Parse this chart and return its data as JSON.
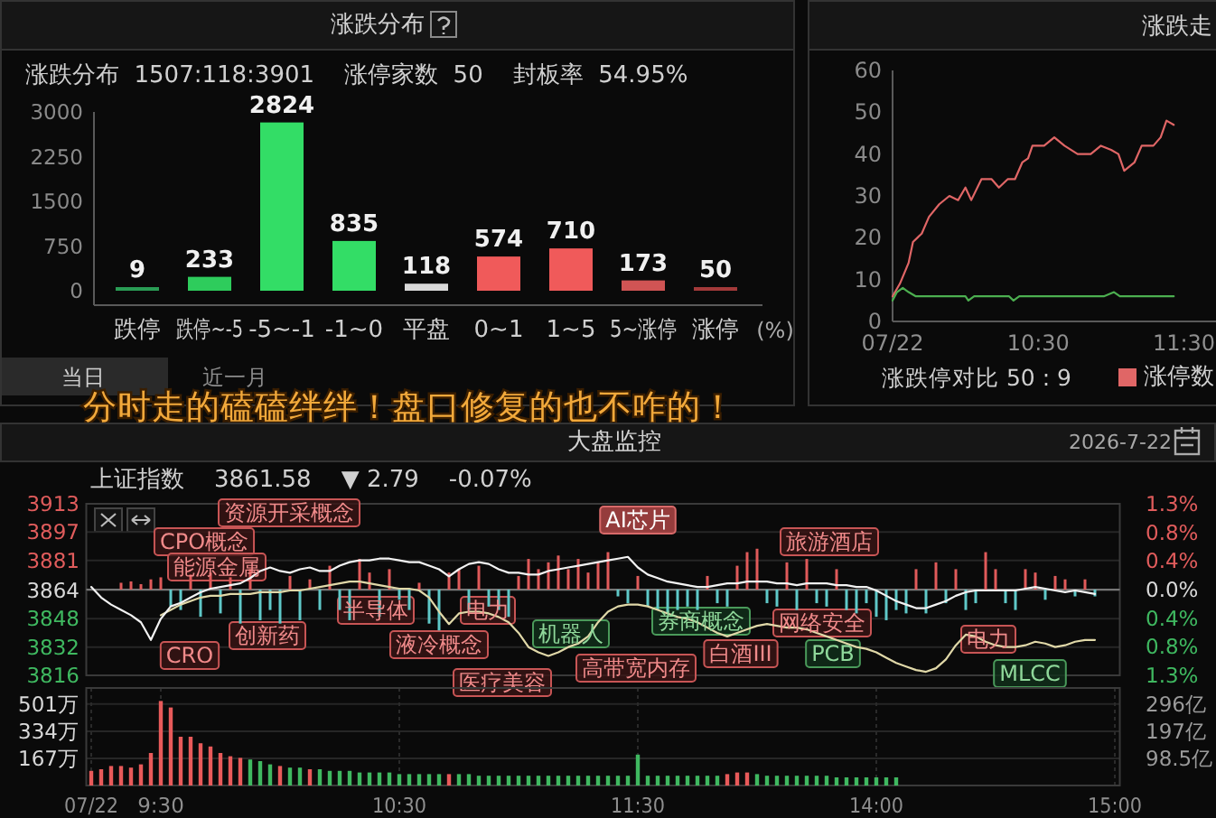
{
  "chart_data": [
    {
      "type": "bar",
      "title": "涨跌分布",
      "subtitle": "涨跌分布  1507:118:3901    涨停家数  50    封板率  54.95%",
      "categories": [
        "跌停",
        "跌停~-5",
        "-5~-1",
        "-1~0",
        "平盘",
        "0~1",
        "1~5",
        "5~涨停",
        "涨停"
      ],
      "values": [
        9,
        233,
        2824,
        835,
        118,
        574,
        710,
        173,
        50
      ],
      "colors": [
        "#2a9d55",
        "#2ecc5c",
        "#33dd66",
        "#33dd66",
        "#d9d9d9",
        "#f05a5a",
        "#f05a5a",
        "#d05454",
        "#a33a3a"
      ],
      "data_labels": true,
      "xlabel": "(%)",
      "ylim": [
        0,
        3000
      ],
      "yticks": [
        0,
        750,
        1500,
        2250,
        3000
      ],
      "annotations": [
        "当日",
        "近一月",
        "分时走的磕磕绊绊！盘口修复的也不咋的！"
      ]
    },
    {
      "type": "line",
      "title": "涨跌走",
      "xlim": [
        9.5,
        11.72
      ],
      "xticks": [
        {
          "value": 9.5,
          "label": "07/22"
        },
        {
          "value": 10.5,
          "label": "10:30"
        },
        {
          "value": 11.5,
          "label": "11:30"
        }
      ],
      "ylim": [
        0,
        60
      ],
      "yticks": [
        0,
        10,
        20,
        30,
        40,
        50,
        60
      ],
      "legend": "bottom",
      "annotations": [
        "涨跌停对比  50 : 9"
      ],
      "series": [
        {
          "name": "涨停数",
          "color": "#e06666",
          "x": [
            9.5,
            9.55,
            9.61,
            9.64,
            9.7,
            9.75,
            9.82,
            9.89,
            9.95,
            10.0,
            10.04,
            10.11,
            10.18,
            10.23,
            10.29,
            10.34,
            10.39,
            10.43,
            10.46,
            10.54,
            10.61,
            10.68,
            10.77,
            10.86,
            10.93,
            11.0,
            11.05,
            11.09,
            11.16,
            11.21,
            11.29,
            11.34,
            11.38,
            11.43
          ],
          "values": [
            6,
            9,
            14,
            19,
            21,
            25,
            28,
            30,
            29,
            32,
            29,
            34,
            34,
            32,
            34,
            34,
            38,
            39,
            42,
            42,
            44,
            42,
            40,
            40,
            42,
            41,
            40,
            36,
            38,
            42,
            42,
            44,
            48,
            47
          ]
        },
        {
          "color": "#4caf50",
          "x": [
            9.5,
            9.53,
            9.57,
            9.61,
            9.66,
            10.0,
            10.02,
            10.06,
            10.3,
            10.33,
            10.37,
            10.95,
            11.02,
            11.06,
            11.43
          ],
          "values": [
            5,
            7,
            8,
            7,
            6,
            6,
            5,
            6,
            6,
            5,
            6,
            6,
            7,
            6,
            6
          ]
        }
      ]
    },
    {
      "type": "line",
      "title": "大盘监控",
      "subtitle": "上证指数    3861.58    ▼ 2.79    -0.07%",
      "categories": [
        null,
        null,
        null,
        null,
        null,
        null,
        null,
        null,
        null,
        null,
        null,
        null,
        null,
        null,
        null,
        null,
        null,
        null,
        null,
        null,
        null,
        null,
        null,
        null,
        null,
        null,
        null,
        null,
        null,
        null,
        null,
        null,
        null,
        null,
        null,
        null,
        null,
        null,
        null,
        null,
        null,
        null,
        null,
        null,
        null,
        null,
        null,
        null,
        null,
        null,
        null,
        null,
        null,
        null,
        null,
        null,
        null,
        null,
        null,
        null,
        null,
        null,
        null,
        null,
        null,
        null,
        null,
        null,
        null,
        null,
        null,
        null,
        null,
        null,
        null,
        null,
        null,
        null,
        null,
        null,
        null,
        null,
        null,
        null,
        null,
        null,
        null,
        null,
        null,
        null,
        null,
        null,
        null,
        null,
        null,
        null,
        null,
        null,
        null,
        null,
        null,
        null,
        null,
        null
      ],
      "ylim": [
        3816,
        3913
      ],
      "yticks": [
        3816,
        3832,
        3848,
        3864,
        3881,
        3897,
        3913
      ],
      "y2lim": [
        -1.26,
        1.26
      ],
      "y2ticks": [
        {
          "value": -1.26,
          "label": "1.3%"
        },
        {
          "value": -0.84,
          "label": "0.8%"
        },
        {
          "value": -0.42,
          "label": "0.4%"
        },
        {
          "value": 0,
          "label": "0.0%"
        },
        {
          "value": 0.42,
          "label": "0.4%"
        },
        {
          "value": 0.84,
          "label": "0.8%"
        },
        {
          "value": 1.26,
          "label": "1.3%"
        }
      ],
      "grid": "y",
      "ref_lines": [
        {
          "axis": "y2",
          "value": 0,
          "color": "#777777"
        }
      ],
      "annotations": [
        "2026-7-22",
        "CRO",
        "CPO概念",
        "资源开采概念",
        "能源金属",
        "创新药",
        "半导体",
        "液冷概念",
        "电力",
        "医疗美容",
        "机器人",
        "高带宽内存",
        "AI芯片",
        "券商概念",
        "旅游酒店",
        "网络安全",
        "白酒III",
        "PCB",
        "电力",
        "MLCC"
      ],
      "series": [
        {
          "type": "bar",
          "axis": "y2",
          "color": "#e05a5a",
          "values": [
            null,
            null,
            null,
            0.1,
            0.12,
            0.08,
            0.15,
            0.18,
            null,
            null,
            0.22,
            null,
            0.25,
            null,
            0.18,
            null,
            0.3,
            null,
            null,
            null,
            0.2,
            null,
            0.15,
            null,
            0.35,
            null,
            null,
            0.45,
            0.25,
            null,
            0.3,
            null,
            null,
            0.1,
            null,
            null,
            0.25,
            0.3,
            null,
            0.35,
            null,
            null,
            null,
            0.2,
            0.45,
            0.3,
            0.4,
            0.5,
            0.3,
            0.45,
            0.25,
            0.4,
            0.55,
            null,
            null,
            0.2,
            null,
            null,
            null,
            null,
            null,
            null,
            0.2,
            null,
            null,
            0.35,
            0.55,
            0.6,
            null,
            null,
            0.4,
            null,
            0.45,
            null,
            null,
            0.3,
            null,
            null,
            null,
            null,
            null,
            null,
            null,
            0.3,
            null,
            0.4,
            null,
            0.3,
            null,
            null,
            0.55,
            0.3,
            null,
            null,
            0.3,
            0.25,
            null,
            0.2,
            0.15,
            null,
            0.15,
            null,
            null,
            null
          ]
        },
        {
          "type": "bar",
          "axis": "y2",
          "color": "#5fc8c8",
          "values": [
            null,
            null,
            null,
            null,
            null,
            null,
            null,
            null,
            -0.25,
            -0.3,
            null,
            -0.4,
            null,
            -0.35,
            null,
            -0.5,
            null,
            -0.45,
            -0.3,
            -0.5,
            null,
            -0.45,
            null,
            -0.3,
            null,
            -0.3,
            -0.45,
            null,
            null,
            -0.4,
            null,
            -0.15,
            -0.3,
            null,
            -0.5,
            -0.6,
            null,
            null,
            -0.3,
            null,
            -0.25,
            -0.3,
            -0.4,
            null,
            null,
            null,
            null,
            null,
            null,
            null,
            null,
            null,
            null,
            -0.1,
            -0.2,
            null,
            -0.25,
            -0.3,
            -0.35,
            -0.3,
            -0.25,
            -0.3,
            null,
            -0.2,
            -0.25,
            null,
            null,
            null,
            -0.2,
            -0.25,
            null,
            -0.3,
            null,
            -0.2,
            -0.25,
            null,
            -0.3,
            -0.35,
            -0.2,
            -0.4,
            -0.45,
            -0.3,
            -0.35,
            null,
            -0.35,
            null,
            -0.2,
            null,
            -0.3,
            -0.2,
            null,
            null,
            -0.2,
            -0.3,
            null,
            null,
            -0.15,
            null,
            null,
            -0.1,
            null,
            -0.1,
            null,
            null
          ]
        },
        {
          "color": "#e0d8a8",
          "values": [
            null,
            null,
            null,
            null,
            null,
            null,
            null,
            3850,
            3853,
            3856,
            3858,
            3860,
            3861,
            3861,
            3862,
            3862,
            3862,
            3863,
            3863,
            3863,
            3864,
            3864,
            3865,
            3866,
            3867,
            3868,
            3869,
            3869,
            3868,
            3867,
            3866,
            3865,
            3865,
            3864,
            3860,
            3852,
            3845,
            3851,
            3852,
            3852,
            3851,
            3849,
            3846,
            3840,
            3832,
            3829,
            3827,
            3829,
            3832,
            3834,
            3838,
            3846,
            3852,
            3855,
            3856,
            3856,
            3855,
            3853,
            3851,
            3849,
            3848,
            3846,
            3843,
            3840,
            3838,
            3840,
            3842,
            3844,
            3845,
            3844,
            3843,
            3843,
            3842,
            3840,
            3838,
            3836,
            3834,
            3832,
            3831,
            3829,
            3826,
            3823,
            3821,
            3819,
            3818,
            3820,
            3825,
            3833,
            3839,
            3838,
            3835,
            3833,
            3832,
            3832,
            3833,
            3835,
            3834,
            3832,
            3833,
            3835,
            3836,
            3836,
            null,
            null
          ]
        },
        {
          "color": "#f2f2f2",
          "values": [
            3866,
            3860,
            3856,
            3853,
            3850,
            3846,
            3836,
            3848,
            3855,
            3857,
            3860,
            3863,
            3865,
            3866,
            3867,
            3868,
            3871,
            3875,
            3877,
            3875,
            3874,
            3876,
            3877,
            3875,
            3875,
            3878,
            3880,
            3881,
            3881,
            3882,
            3882,
            3881,
            3880,
            3880,
            3878,
            3876,
            3872,
            3876,
            3879,
            3880,
            3879,
            3876,
            3874,
            3874,
            3873,
            3873,
            3875,
            3876,
            3877,
            3878,
            3879,
            3880,
            3881,
            3882,
            3883,
            3877,
            3873,
            3871,
            3869,
            3868,
            3867,
            3866,
            3866,
            3867,
            3868,
            3868,
            3869,
            3869,
            3869,
            3868,
            3868,
            3867,
            3868,
            3868,
            3868,
            3867,
            3867,
            3866,
            3866,
            3864,
            3861,
            3858,
            3856,
            3854,
            3854,
            3856,
            3858,
            3861,
            3863,
            3864,
            3864,
            3864,
            3864,
            3864,
            3865,
            3866,
            3865,
            3864,
            3863,
            3864,
            3863,
            3862,
            null,
            null
          ]
        }
      ]
    },
    {
      "type": "bar",
      "categories": [
        "07/22",
        null,
        null,
        null,
        null,
        null,
        null,
        "9:30",
        null,
        null,
        null,
        null,
        null,
        null,
        null,
        null,
        null,
        null,
        null,
        null,
        null,
        null,
        null,
        null,
        null,
        null,
        null,
        null,
        null,
        null,
        null,
        "10:30",
        null,
        null,
        null,
        null,
        null,
        null,
        null,
        null,
        null,
        null,
        null,
        null,
        null,
        null,
        null,
        null,
        null,
        null,
        null,
        null,
        null,
        null,
        null,
        "11:30",
        null,
        null,
        null,
        null,
        null,
        null,
        null,
        null,
        null,
        null,
        null,
        null,
        null,
        null,
        null,
        null,
        null,
        null,
        null,
        null,
        null,
        null,
        null,
        "14:00",
        null,
        null,
        null,
        null,
        null,
        null,
        null,
        null,
        null,
        null,
        null,
        null,
        null,
        null,
        null,
        null,
        null,
        null,
        null,
        null,
        null,
        null,
        null,
        "15:00"
      ],
      "ylim": [
        0,
        600
      ],
      "yticks": [
        {
          "value": 167,
          "label": "167万"
        },
        {
          "value": 334,
          "label": "334万"
        },
        {
          "value": 501,
          "label": "501万"
        }
      ],
      "y2lim": [
        0,
        355
      ],
      "y2ticks": [
        {
          "value": 98.5,
          "label": "98.5亿"
        },
        {
          "value": 197,
          "label": "197亿"
        },
        {
          "value": 296,
          "label": "296亿"
        }
      ],
      "grid": true,
      "series": [
        {
          "color": "#e85a5a",
          "values": [
            90,
            100,
            120,
            120,
            110,
            130,
            200,
            520,
            480,
            300,
            300,
            260,
            240,
            200,
            180,
            170,
            null,
            null,
            null,
            120,
            null,
            null,
            100,
            null,
            null,
            null,
            null,
            null,
            null,
            null,
            null,
            null,
            null,
            null,
            null,
            null,
            70,
            null,
            null,
            null,
            null,
            null,
            null,
            null,
            null,
            null,
            null,
            null,
            null,
            null,
            null,
            null,
            null,
            null,
            null,
            null,
            null,
            null,
            null,
            null,
            null,
            null,
            null,
            null,
            70,
            80,
            80,
            null,
            null,
            null,
            null,
            null,
            null,
            null,
            null,
            null,
            null,
            null,
            null,
            null,
            null,
            null,
            null,
            null,
            null,
            null,
            null,
            null,
            null,
            null,
            null,
            null,
            null,
            null,
            null,
            null,
            null,
            null,
            null,
            null,
            null,
            null,
            null,
            null
          ]
        },
        {
          "color": "#3fb860",
          "values": [
            null,
            null,
            null,
            null,
            null,
            null,
            null,
            null,
            null,
            null,
            null,
            null,
            null,
            null,
            null,
            null,
            160,
            150,
            130,
            null,
            110,
            110,
            null,
            100,
            90,
            90,
            90,
            80,
            80,
            80,
            80,
            70,
            70,
            70,
            70,
            70,
            null,
            70,
            70,
            60,
            60,
            60,
            60,
            60,
            60,
            60,
            60,
            60,
            60,
            60,
            60,
            60,
            60,
            60,
            60,
            190,
            60,
            60,
            60,
            60,
            60,
            60,
            60,
            60,
            null,
            null,
            null,
            70,
            60,
            60,
            60,
            60,
            60,
            60,
            60,
            50,
            50,
            50,
            50,
            50,
            50,
            50,
            null,
            null,
            null,
            null,
            null,
            null,
            null,
            null,
            null,
            null,
            null,
            null,
            null,
            null,
            null,
            null,
            null,
            null,
            null,
            null,
            null,
            null
          ]
        }
      ]
    }
  ]
}
